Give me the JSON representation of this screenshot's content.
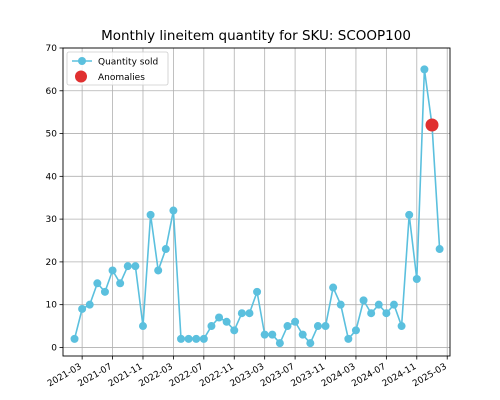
{
  "chart_data": {
    "type": "line",
    "title": "Monthly lineitem quantity for SKU: SCOOP100",
    "xlabel": "",
    "ylabel": "",
    "ylim": [
      -2,
      70
    ],
    "xlim": [
      "2021-01-01",
      "2025-03-01"
    ],
    "grid": true,
    "legend_placement": "top-left",
    "x_ticks": [
      "2021-03",
      "2021-07",
      "2021-11",
      "2022-03",
      "2022-07",
      "2022-11",
      "2023-03",
      "2023-07",
      "2023-11",
      "2024-03",
      "2024-07",
      "2024-11",
      "2025-03"
    ],
    "y_ticks": [
      0,
      10,
      20,
      30,
      40,
      50,
      60,
      70
    ],
    "series": [
      {
        "name": "Quantity sold",
        "color": "#5bc0de",
        "marker": "circle",
        "x": [
          "2021-02",
          "2021-03",
          "2021-04",
          "2021-05",
          "2021-06",
          "2021-07",
          "2021-08",
          "2021-09",
          "2021-10",
          "2021-11",
          "2021-12",
          "2022-01",
          "2022-02",
          "2022-03",
          "2022-04",
          "2022-05",
          "2022-06",
          "2022-07",
          "2022-08",
          "2022-09",
          "2022-10",
          "2022-11",
          "2022-12",
          "2023-01",
          "2023-02",
          "2023-03",
          "2023-04",
          "2023-05",
          "2023-06",
          "2023-07",
          "2023-08",
          "2023-09",
          "2023-10",
          "2023-11",
          "2023-12",
          "2024-01",
          "2024-02",
          "2024-03",
          "2024-04",
          "2024-05",
          "2024-06",
          "2024-07",
          "2024-08",
          "2024-09",
          "2024-10",
          "2024-11",
          "2024-12",
          "2025-01",
          "2025-02"
        ],
        "values": [
          2,
          9,
          10,
          15,
          13,
          18,
          15,
          19,
          19,
          5,
          31,
          18,
          23,
          32,
          2,
          2,
          2,
          2,
          5,
          7,
          6,
          4,
          8,
          8,
          13,
          3,
          3,
          1,
          5,
          6,
          3,
          1,
          5,
          5,
          14,
          10,
          2,
          4,
          11,
          8,
          10,
          8,
          10,
          5,
          31,
          16,
          65,
          52,
          23
        ]
      },
      {
        "name": "Anomalies",
        "color": "#e03030",
        "marker": "circle",
        "x": [
          "2025-01"
        ],
        "values": [
          52
        ]
      }
    ]
  }
}
